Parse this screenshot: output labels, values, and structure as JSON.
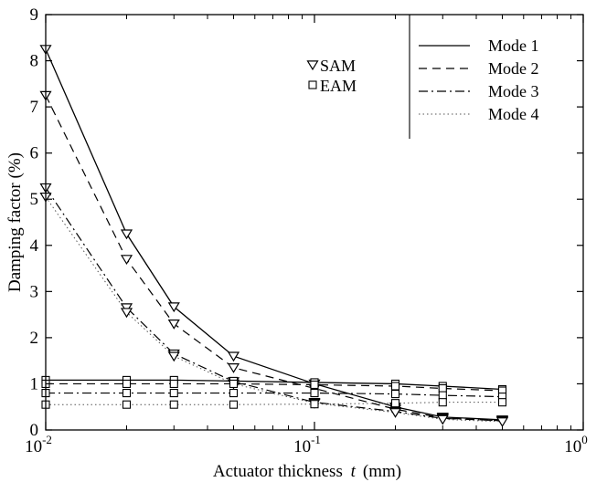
{
  "chart_data": {
    "type": "line",
    "x_scale": "log",
    "xlim": [
      0.01,
      1
    ],
    "ylim": [
      0,
      9
    ],
    "xlabel_text": "Actuator thickness",
    "xlabel_var": "t",
    "xlabel_unit": "(mm)",
    "ylabel": "Damping factor (%)",
    "x_ticks": [
      {
        "value": 0.01,
        "base": "10",
        "exp": "-2"
      },
      {
        "value": 0.1,
        "base": "10",
        "exp": "-1"
      },
      {
        "value": 1,
        "base": "10",
        "exp": "0"
      }
    ],
    "y_ticks": [
      "0",
      "1",
      "2",
      "3",
      "4",
      "5",
      "6",
      "7",
      "8",
      "9"
    ],
    "grid": false,
    "legend_position": "top-right",
    "marker_legend": [
      {
        "marker": "triangle-down",
        "label": "SAM"
      },
      {
        "marker": "square",
        "label": "EAM"
      }
    ],
    "line_legend": [
      {
        "style": "solid",
        "label": "Mode 1"
      },
      {
        "style": "dashed",
        "label": "Mode 2"
      },
      {
        "style": "dashdot",
        "label": "Mode 3"
      },
      {
        "style": "dotted",
        "label": "Mode 4"
      }
    ],
    "x": [
      0.01,
      0.02,
      0.03,
      0.05,
      0.1,
      0.2,
      0.3,
      0.5
    ],
    "series": [
      {
        "method": "SAM",
        "mode": "Mode 1",
        "style": "solid",
        "marker": "triangle-down",
        "values": [
          8.25,
          4.25,
          2.67,
          1.6,
          1.0,
          0.5,
          0.28,
          0.22
        ]
      },
      {
        "method": "SAM",
        "mode": "Mode 2",
        "style": "dashed",
        "marker": "triangle-down",
        "values": [
          7.25,
          3.7,
          2.3,
          1.35,
          0.9,
          0.45,
          0.26,
          0.2
        ]
      },
      {
        "method": "SAM",
        "mode": "Mode 3",
        "style": "dashdot",
        "marker": "triangle-down",
        "values": [
          5.25,
          2.65,
          1.65,
          1.05,
          0.6,
          0.4,
          0.25,
          0.2
        ]
      },
      {
        "method": "SAM",
        "mode": "Mode 4",
        "style": "dotted",
        "marker": "triangle-down",
        "values": [
          5.05,
          2.55,
          1.6,
          1.0,
          0.58,
          0.38,
          0.23,
          0.18
        ]
      },
      {
        "method": "EAM",
        "mode": "Mode 1",
        "style": "solid",
        "marker": "square",
        "values": [
          1.08,
          1.08,
          1.08,
          1.06,
          1.03,
          1.0,
          0.95,
          0.88
        ]
      },
      {
        "method": "EAM",
        "mode": "Mode 2",
        "style": "dashed",
        "marker": "square",
        "values": [
          1.0,
          1.0,
          1.0,
          1.0,
          0.98,
          0.95,
          0.9,
          0.85
        ]
      },
      {
        "method": "EAM",
        "mode": "Mode 3",
        "style": "dashdot",
        "marker": "square",
        "values": [
          0.8,
          0.8,
          0.8,
          0.8,
          0.8,
          0.78,
          0.75,
          0.72
        ]
      },
      {
        "method": "EAM",
        "mode": "Mode 4",
        "style": "dotted",
        "marker": "square",
        "values": [
          0.55,
          0.55,
          0.55,
          0.55,
          0.56,
          0.58,
          0.6,
          0.6
        ]
      }
    ]
  }
}
